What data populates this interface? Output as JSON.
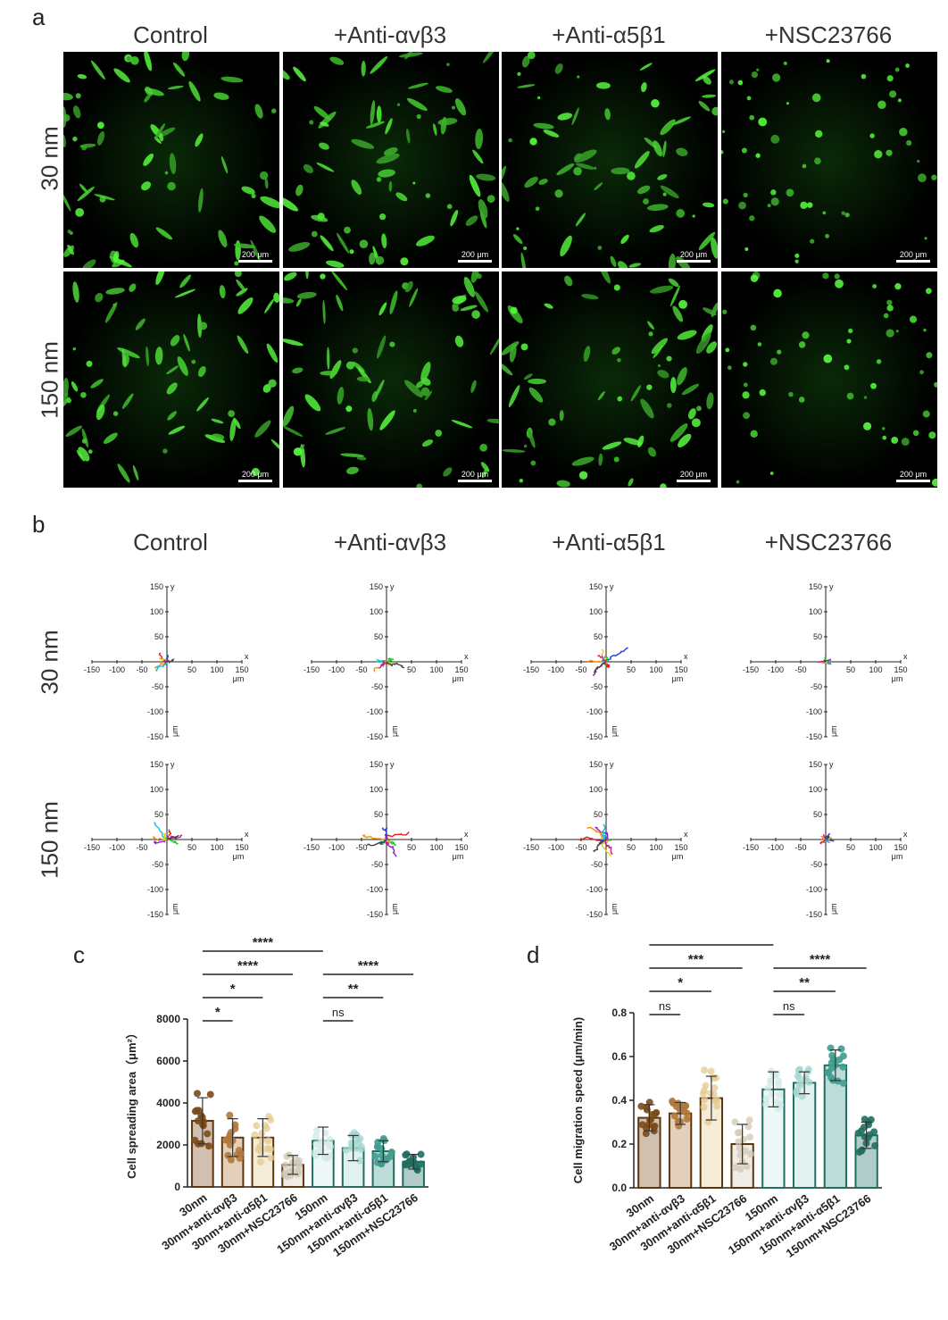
{
  "panel_a": {
    "letter": "a",
    "col_titles": [
      "Control",
      "+Anti-αvβ3",
      "+Anti-α5β1",
      "+NSC23766"
    ],
    "row_titles": [
      "30 nm",
      "150 nm"
    ],
    "scale_label": "200 μm"
  },
  "panel_b": {
    "letter": "b",
    "col_titles": [
      "Control",
      "+Anti-αvβ3",
      "+Anti-α5β1",
      "+NSC23766"
    ],
    "row_titles": [
      "30 nm",
      "150 nm"
    ],
    "axis_x_label": "x",
    "axis_y_label": "y",
    "unit_label": "μm",
    "ticks": [
      -150,
      -100,
      -50,
      50,
      100,
      150
    ]
  },
  "chart_data": [
    {
      "panel": "c",
      "type": "bar",
      "ylabel": "Cell spreading area（μm²）",
      "ylim": [
        0,
        8000
      ],
      "yticks": [
        0,
        2000,
        4000,
        6000,
        8000
      ],
      "categories": [
        "30nm",
        "30nm+anti-αvβ3",
        "30nm+anti-α5β1",
        "30nm+NSC23766",
        "150nm",
        "150nm+anti-αvβ3",
        "150nm+anti-α5β1",
        "150nm+NSC23766"
      ],
      "values": [
        3150,
        2350,
        2350,
        1050,
        2200,
        1850,
        1700,
        1200
      ],
      "errors": [
        1100,
        900,
        900,
        450,
        650,
        600,
        500,
        350
      ],
      "colors": [
        "#7b4a1a",
        "#b0783a",
        "#e3c98e",
        "#d2c8b4",
        "#cfeae6",
        "#a6d6cd",
        "#3f9c8e",
        "#1f6e62"
      ],
      "significance": [
        {
          "from": 0,
          "to": 1,
          "label": "*"
        },
        {
          "from": 0,
          "to": 2,
          "label": "*"
        },
        {
          "from": 0,
          "to": 3,
          "label": "****"
        },
        {
          "from": 0,
          "to": 4,
          "label": "****"
        },
        {
          "from": 4,
          "to": 5,
          "label": "ns"
        },
        {
          "from": 4,
          "to": 6,
          "label": "**"
        },
        {
          "from": 4,
          "to": 7,
          "label": "****"
        }
      ]
    },
    {
      "panel": "d",
      "type": "bar",
      "ylabel": "Cell migration speed (μm/min)",
      "ylim": [
        0,
        0.8
      ],
      "yticks": [
        0.0,
        0.2,
        0.4,
        0.6,
        0.8
      ],
      "categories": [
        "30nm",
        "30nm+anti-αvβ3",
        "30nm+anti-α5β1",
        "30nm+NSC23766",
        "150nm",
        "150nm+anti-αvβ3",
        "150nm+anti-α5β1",
        "150nm+NSC23766"
      ],
      "values": [
        0.32,
        0.34,
        0.41,
        0.2,
        0.45,
        0.48,
        0.56,
        0.24
      ],
      "errors": [
        0.06,
        0.05,
        0.1,
        0.09,
        0.08,
        0.05,
        0.07,
        0.06
      ],
      "colors": [
        "#7b4a1a",
        "#b0783a",
        "#e3c98e",
        "#d2c8b4",
        "#cfeae6",
        "#a6d6cd",
        "#3f9c8e",
        "#1f6e62"
      ],
      "significance": [
        {
          "from": 0,
          "to": 1,
          "label": "ns"
        },
        {
          "from": 0,
          "to": 2,
          "label": "*"
        },
        {
          "from": 0,
          "to": 3,
          "label": "***"
        },
        {
          "from": 0,
          "to": 4,
          "label": "****"
        },
        {
          "from": 4,
          "to": 5,
          "label": "ns"
        },
        {
          "from": 4,
          "to": 6,
          "label": "**"
        },
        {
          "from": 4,
          "to": 7,
          "label": "****"
        }
      ]
    }
  ]
}
